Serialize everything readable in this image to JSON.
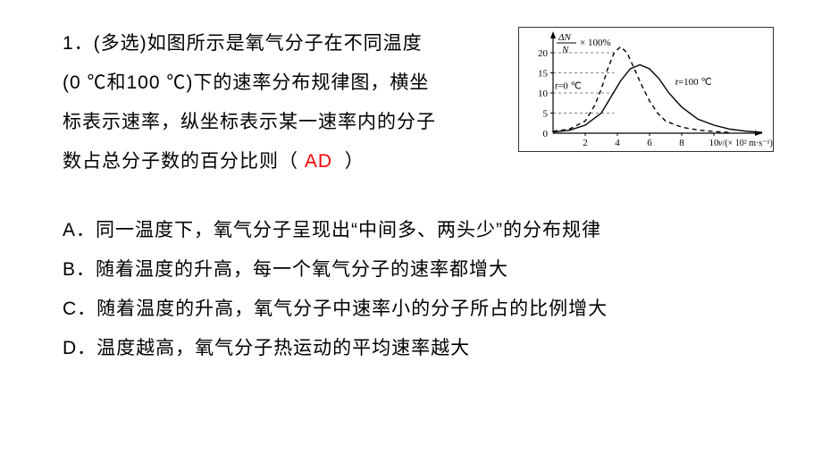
{
  "question": {
    "number": "1",
    "prefix": "．(多选)",
    "line1": "如图所示是氧气分子在不同温度",
    "line2": "(0 ℃和100 ℃)下的速率分布规律图，横坐",
    "line3": "标表示速率，纵坐标表示某一速率内的分子",
    "line4_prefix": "数占总分子数的百分比则（",
    "line4_suffix": "）",
    "answer": "AD"
  },
  "options": {
    "A": "．同一温度下，氧气分子呈现出“中间多、两头少”的分布规律",
    "B": "．随着温度的升高，每一个氧气分子的速率都增大",
    "C": "．随着温度的升高，氧气分子中速率小的分子所占的比例增大",
    "D": "．温度越高，氧气分子热运动的平均速率越大"
  },
  "chart": {
    "type": "line",
    "y_label_top": "Δ",
    "y_label_N1": "N",
    "y_label_N2": "N",
    "y_label_mult": "× 100%",
    "y_ticks": [
      "0",
      "5",
      "10",
      "15",
      "20"
    ],
    "x_ticks": [
      "2",
      "4",
      "6",
      "8",
      "10"
    ],
    "x_axis_label_v": "v",
    "x_axis_label_unit": "/(× 10² m·s⁻¹)",
    "curve0_label_t": "t",
    "curve0_label_rest": "=0 ℃",
    "curve100_label_t": "t",
    "curve100_label_rest": "=100 ℃",
    "colors": {
      "axis": "#000000",
      "curve0": "#000000",
      "curve100": "#000000",
      "text": "#000000",
      "background": "#ffffff",
      "box_border": "#333333"
    },
    "font_size_axis": 11,
    "plot": {
      "x_origin": 38,
      "y_origin": 118,
      "x_scale": 18,
      "y_scale": 4.5,
      "curve0": {
        "dash": "5,4",
        "width": 1.4,
        "points": [
          [
            0,
            0.5
          ],
          [
            1,
            1
          ],
          [
            2,
            3
          ],
          [
            2.6,
            7
          ],
          [
            3,
            11
          ],
          [
            3.4,
            16
          ],
          [
            3.8,
            20
          ],
          [
            4.2,
            21.5
          ],
          [
            4.6,
            20
          ],
          [
            5,
            16.5
          ],
          [
            5.5,
            12
          ],
          [
            6,
            8
          ],
          [
            6.5,
            5
          ],
          [
            7,
            3
          ],
          [
            8,
            1.5
          ],
          [
            9,
            0.8
          ],
          [
            10,
            0.4
          ],
          [
            11,
            0.2
          ]
        ]
      },
      "curve100": {
        "dash": "none",
        "width": 1.4,
        "points": [
          [
            0,
            0.3
          ],
          [
            1,
            0.7
          ],
          [
            2,
            2
          ],
          [
            3,
            5
          ],
          [
            3.6,
            9
          ],
          [
            4.2,
            13
          ],
          [
            4.8,
            16
          ],
          [
            5.4,
            17
          ],
          [
            6,
            16
          ],
          [
            6.6,
            13.5
          ],
          [
            7.2,
            10
          ],
          [
            8,
            6.5
          ],
          [
            9,
            3.5
          ],
          [
            10,
            2
          ],
          [
            11,
            1
          ],
          [
            12,
            0.5
          ],
          [
            13,
            0.2
          ]
        ]
      }
    }
  }
}
